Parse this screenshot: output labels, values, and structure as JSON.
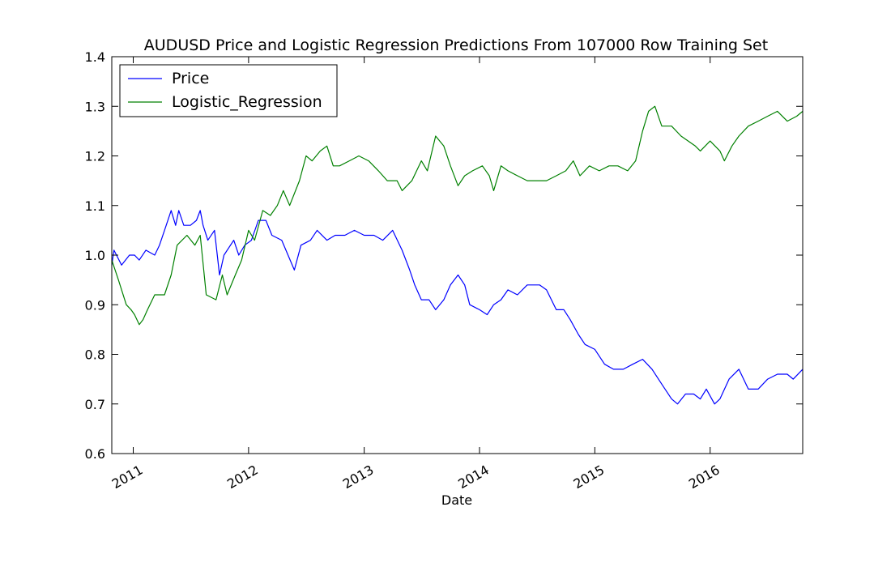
{
  "chart_data": {
    "type": "line",
    "title": "AUDUSD Price and Logistic Regression Predictions From 107000 Row Training Set",
    "xlabel": "Date",
    "ylabel": "",
    "ylim": [
      0.6,
      1.4
    ],
    "xlim": [
      "2010-10-25",
      "2016-10-20"
    ],
    "yticks": [
      "0.6",
      "0.7",
      "0.8",
      "0.9",
      "1.0",
      "1.1",
      "1.2",
      "1.3",
      "1.4"
    ],
    "xticks": [
      {
        "date": "2011-01-01",
        "label": "2011"
      },
      {
        "date": "2012-01-01",
        "label": "2012"
      },
      {
        "date": "2013-01-01",
        "label": "2013"
      },
      {
        "date": "2014-01-01",
        "label": "2014"
      },
      {
        "date": "2015-01-01",
        "label": "2015"
      },
      {
        "date": "2016-01-01",
        "label": "2016"
      }
    ],
    "legend_position": "top-left",
    "grid": false,
    "series": [
      {
        "name": "Price",
        "color": "#0000ff",
        "points": [
          [
            "2010-10-25",
            0.98
          ],
          [
            "2010-11-01",
            1.01
          ],
          [
            "2010-11-25",
            0.98
          ],
          [
            "2010-12-20",
            1.0
          ],
          [
            "2011-01-05",
            1.0
          ],
          [
            "2011-01-20",
            0.99
          ],
          [
            "2011-02-10",
            1.01
          ],
          [
            "2011-03-10",
            1.0
          ],
          [
            "2011-03-25",
            1.02
          ],
          [
            "2011-04-10",
            1.05
          ],
          [
            "2011-05-01",
            1.09
          ],
          [
            "2011-05-15",
            1.06
          ],
          [
            "2011-05-25",
            1.09
          ],
          [
            "2011-06-10",
            1.06
          ],
          [
            "2011-07-01",
            1.06
          ],
          [
            "2011-07-20",
            1.07
          ],
          [
            "2011-08-01",
            1.09
          ],
          [
            "2011-08-10",
            1.06
          ],
          [
            "2011-08-25",
            1.03
          ],
          [
            "2011-09-15",
            1.05
          ],
          [
            "2011-10-01",
            0.96
          ],
          [
            "2011-10-15",
            1.0
          ],
          [
            "2011-11-15",
            1.03
          ],
          [
            "2011-12-01",
            1.0
          ],
          [
            "2011-12-20",
            1.02
          ],
          [
            "2012-01-10",
            1.03
          ],
          [
            "2012-02-01",
            1.07
          ],
          [
            "2012-02-25",
            1.07
          ],
          [
            "2012-03-15",
            1.04
          ],
          [
            "2012-04-15",
            1.03
          ],
          [
            "2012-05-25",
            0.97
          ],
          [
            "2012-06-15",
            1.02
          ],
          [
            "2012-07-15",
            1.03
          ],
          [
            "2012-08-05",
            1.05
          ],
          [
            "2012-09-05",
            1.03
          ],
          [
            "2012-10-01",
            1.04
          ],
          [
            "2012-11-01",
            1.04
          ],
          [
            "2012-12-01",
            1.05
          ],
          [
            "2013-01-01",
            1.04
          ],
          [
            "2013-02-01",
            1.04
          ],
          [
            "2013-03-01",
            1.03
          ],
          [
            "2013-04-01",
            1.05
          ],
          [
            "2013-05-01",
            1.01
          ],
          [
            "2013-05-25",
            0.97
          ],
          [
            "2013-06-10",
            0.94
          ],
          [
            "2013-07-01",
            0.91
          ],
          [
            "2013-07-25",
            0.91
          ],
          [
            "2013-08-15",
            0.89
          ],
          [
            "2013-09-10",
            0.91
          ],
          [
            "2013-10-01",
            0.94
          ],
          [
            "2013-10-25",
            0.96
          ],
          [
            "2013-11-15",
            0.94
          ],
          [
            "2013-12-01",
            0.9
          ],
          [
            "2014-01-01",
            0.89
          ],
          [
            "2014-01-25",
            0.88
          ],
          [
            "2014-02-15",
            0.9
          ],
          [
            "2014-03-10",
            0.91
          ],
          [
            "2014-04-01",
            0.93
          ],
          [
            "2014-05-01",
            0.92
          ],
          [
            "2014-06-01",
            0.94
          ],
          [
            "2014-07-10",
            0.94
          ],
          [
            "2014-08-01",
            0.93
          ],
          [
            "2014-09-01",
            0.89
          ],
          [
            "2014-09-25",
            0.89
          ],
          [
            "2014-10-15",
            0.87
          ],
          [
            "2014-11-10",
            0.84
          ],
          [
            "2014-12-01",
            0.82
          ],
          [
            "2015-01-01",
            0.81
          ],
          [
            "2015-02-01",
            0.78
          ],
          [
            "2015-03-01",
            0.77
          ],
          [
            "2015-04-01",
            0.77
          ],
          [
            "2015-05-01",
            0.78
          ],
          [
            "2015-06-01",
            0.79
          ],
          [
            "2015-07-01",
            0.77
          ],
          [
            "2015-08-01",
            0.74
          ],
          [
            "2015-09-01",
            0.71
          ],
          [
            "2015-09-20",
            0.7
          ],
          [
            "2015-10-15",
            0.72
          ],
          [
            "2015-11-10",
            0.72
          ],
          [
            "2015-12-01",
            0.71
          ],
          [
            "2015-12-20",
            0.73
          ],
          [
            "2016-01-15",
            0.7
          ],
          [
            "2016-02-01",
            0.71
          ],
          [
            "2016-03-01",
            0.75
          ],
          [
            "2016-04-01",
            0.77
          ],
          [
            "2016-05-01",
            0.73
          ],
          [
            "2016-06-01",
            0.73
          ],
          [
            "2016-07-01",
            0.75
          ],
          [
            "2016-08-01",
            0.76
          ],
          [
            "2016-09-01",
            0.76
          ],
          [
            "2016-09-20",
            0.75
          ],
          [
            "2016-10-20",
            0.77
          ]
        ]
      },
      {
        "name": "Logistic_Regression",
        "color": "#008000",
        "points": [
          [
            "2010-10-25",
            0.99
          ],
          [
            "2010-11-15",
            0.95
          ],
          [
            "2010-12-10",
            0.9
          ],
          [
            "2010-12-25",
            0.89
          ],
          [
            "2011-01-05",
            0.88
          ],
          [
            "2011-01-20",
            0.86
          ],
          [
            "2011-02-01",
            0.87
          ],
          [
            "2011-02-15",
            0.89
          ],
          [
            "2011-03-10",
            0.92
          ],
          [
            "2011-04-10",
            0.92
          ],
          [
            "2011-05-01",
            0.96
          ],
          [
            "2011-05-20",
            1.02
          ],
          [
            "2011-06-20",
            1.04
          ],
          [
            "2011-07-15",
            1.02
          ],
          [
            "2011-08-01",
            1.04
          ],
          [
            "2011-08-20",
            0.92
          ],
          [
            "2011-09-20",
            0.91
          ],
          [
            "2011-10-10",
            0.96
          ],
          [
            "2011-10-25",
            0.92
          ],
          [
            "2011-11-20",
            0.96
          ],
          [
            "2011-12-10",
            0.99
          ],
          [
            "2012-01-01",
            1.05
          ],
          [
            "2012-01-20",
            1.03
          ],
          [
            "2012-02-15",
            1.09
          ],
          [
            "2012-03-10",
            1.08
          ],
          [
            "2012-04-01",
            1.1
          ],
          [
            "2012-04-20",
            1.13
          ],
          [
            "2012-05-10",
            1.1
          ],
          [
            "2012-06-10",
            1.15
          ],
          [
            "2012-07-01",
            1.2
          ],
          [
            "2012-07-20",
            1.19
          ],
          [
            "2012-08-15",
            1.21
          ],
          [
            "2012-09-05",
            1.22
          ],
          [
            "2012-09-25",
            1.18
          ],
          [
            "2012-10-15",
            1.18
          ],
          [
            "2012-11-15",
            1.19
          ],
          [
            "2012-12-15",
            1.2
          ],
          [
            "2013-01-15",
            1.19
          ],
          [
            "2013-02-15",
            1.17
          ],
          [
            "2013-03-15",
            1.15
          ],
          [
            "2013-04-15",
            1.15
          ],
          [
            "2013-05-01",
            1.13
          ],
          [
            "2013-06-01",
            1.15
          ],
          [
            "2013-07-01",
            1.19
          ],
          [
            "2013-07-20",
            1.17
          ],
          [
            "2013-08-15",
            1.24
          ],
          [
            "2013-09-10",
            1.22
          ],
          [
            "2013-10-01",
            1.18
          ],
          [
            "2013-10-25",
            1.14
          ],
          [
            "2013-11-15",
            1.16
          ],
          [
            "2013-12-10",
            1.17
          ],
          [
            "2014-01-10",
            1.18
          ],
          [
            "2014-02-01",
            1.16
          ],
          [
            "2014-02-15",
            1.13
          ],
          [
            "2014-03-10",
            1.18
          ],
          [
            "2014-04-01",
            1.17
          ],
          [
            "2014-05-01",
            1.16
          ],
          [
            "2014-06-01",
            1.15
          ],
          [
            "2014-07-01",
            1.15
          ],
          [
            "2014-08-01",
            1.15
          ],
          [
            "2014-09-01",
            1.16
          ],
          [
            "2014-10-01",
            1.17
          ],
          [
            "2014-10-25",
            1.19
          ],
          [
            "2014-11-15",
            1.16
          ],
          [
            "2014-12-15",
            1.18
          ],
          [
            "2015-01-15",
            1.17
          ],
          [
            "2015-02-15",
            1.18
          ],
          [
            "2015-03-15",
            1.18
          ],
          [
            "2015-04-15",
            1.17
          ],
          [
            "2015-05-10",
            1.19
          ],
          [
            "2015-06-01",
            1.25
          ],
          [
            "2015-06-20",
            1.29
          ],
          [
            "2015-07-10",
            1.3
          ],
          [
            "2015-08-01",
            1.26
          ],
          [
            "2015-09-01",
            1.26
          ],
          [
            "2015-10-01",
            1.24
          ],
          [
            "2015-11-15",
            1.22
          ],
          [
            "2015-12-01",
            1.21
          ],
          [
            "2016-01-01",
            1.23
          ],
          [
            "2016-02-01",
            1.21
          ],
          [
            "2016-02-15",
            1.19
          ],
          [
            "2016-03-10",
            1.22
          ],
          [
            "2016-04-01",
            1.24
          ],
          [
            "2016-05-01",
            1.26
          ],
          [
            "2016-06-01",
            1.27
          ],
          [
            "2016-07-01",
            1.28
          ],
          [
            "2016-08-01",
            1.29
          ],
          [
            "2016-09-01",
            1.27
          ],
          [
            "2016-10-01",
            1.28
          ],
          [
            "2016-10-20",
            1.29
          ]
        ]
      }
    ]
  }
}
